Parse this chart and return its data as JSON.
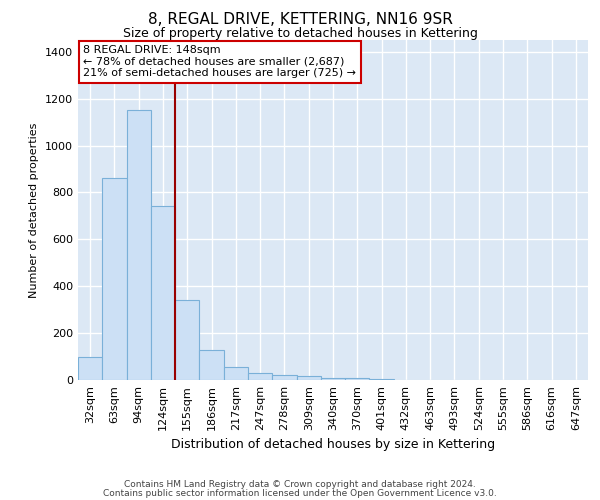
{
  "title": "8, REGAL DRIVE, KETTERING, NN16 9SR",
  "subtitle": "Size of property relative to detached houses in Kettering",
  "xlabel": "Distribution of detached houses by size in Kettering",
  "ylabel": "Number of detached properties",
  "categories": [
    "32sqm",
    "63sqm",
    "94sqm",
    "124sqm",
    "155sqm",
    "186sqm",
    "217sqm",
    "247sqm",
    "278sqm",
    "309sqm",
    "340sqm",
    "370sqm",
    "401sqm",
    "432sqm",
    "463sqm",
    "493sqm",
    "524sqm",
    "555sqm",
    "586sqm",
    "616sqm",
    "647sqm"
  ],
  "values": [
    100,
    860,
    1150,
    740,
    340,
    130,
    55,
    30,
    20,
    15,
    10,
    10,
    5,
    0,
    0,
    0,
    0,
    0,
    0,
    0,
    0
  ],
  "bar_color": "#cce0f5",
  "bar_edge_color": "#7ab0d8",
  "vline_color": "#990000",
  "annotation_text": "8 REGAL DRIVE: 148sqm\n← 78% of detached houses are smaller (2,687)\n21% of semi-detached houses are larger (725) →",
  "annotation_box_color": "#ffffff",
  "annotation_box_edge_color": "#cc0000",
  "ylim": [
    0,
    1450
  ],
  "yticks": [
    0,
    200,
    400,
    600,
    800,
    1000,
    1200,
    1400
  ],
  "footer1": "Contains HM Land Registry data © Crown copyright and database right 2024.",
  "footer2": "Contains public sector information licensed under the Open Government Licence v3.0.",
  "bg_color": "#ffffff",
  "plot_bg_color": "#dce8f5",
  "grid_color": "#ffffff",
  "title_fontsize": 11,
  "subtitle_fontsize": 9,
  "ylabel_fontsize": 8,
  "xlabel_fontsize": 9,
  "tick_fontsize": 8,
  "annot_fontsize": 8,
  "footer_fontsize": 6.5
}
